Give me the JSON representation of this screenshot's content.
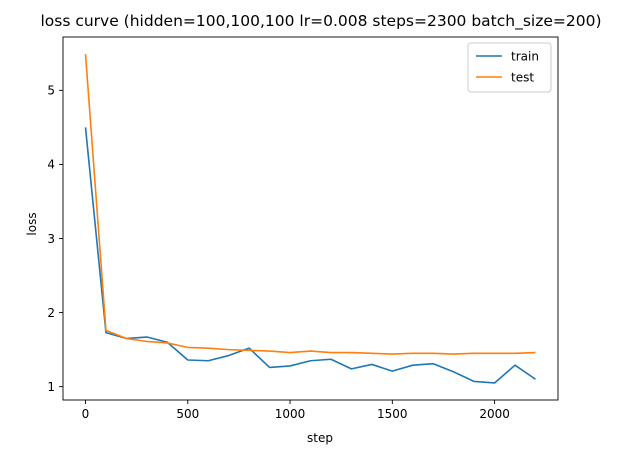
{
  "chart_data": {
    "type": "line",
    "title": "loss curve (hidden=100,100,100 lr=0.008 steps=2300 batch_size=200)",
    "xlabel": "step",
    "ylabel": "loss",
    "xlim": [
      -110,
      2310
    ],
    "ylim": [
      0.82,
      5.72
    ],
    "xticks": [
      0,
      500,
      1000,
      1500,
      2000
    ],
    "yticks": [
      1,
      2,
      3,
      4,
      5
    ],
    "grid": false,
    "legend_position": "top-right",
    "series": [
      {
        "name": "train",
        "color": "#1f77b4",
        "x": [
          0,
          100,
          200,
          300,
          400,
          500,
          600,
          700,
          800,
          900,
          1000,
          1100,
          1200,
          1300,
          1400,
          1500,
          1600,
          1700,
          1800,
          1900,
          2000,
          2100,
          2200
        ],
        "y": [
          4.5,
          1.73,
          1.65,
          1.67,
          1.6,
          1.36,
          1.35,
          1.42,
          1.52,
          1.26,
          1.28,
          1.35,
          1.37,
          1.24,
          1.3,
          1.21,
          1.29,
          1.31,
          1.2,
          1.07,
          1.05,
          1.29,
          1.1
        ]
      },
      {
        "name": "test",
        "color": "#ff7f0e",
        "x": [
          0,
          100,
          200,
          300,
          400,
          500,
          600,
          700,
          800,
          900,
          1000,
          1100,
          1200,
          1300,
          1400,
          1500,
          1600,
          1700,
          1800,
          1900,
          2000,
          2100,
          2200
        ],
        "y": [
          5.49,
          1.76,
          1.65,
          1.61,
          1.59,
          1.53,
          1.52,
          1.5,
          1.49,
          1.48,
          1.46,
          1.48,
          1.46,
          1.46,
          1.45,
          1.44,
          1.45,
          1.45,
          1.44,
          1.45,
          1.45,
          1.45,
          1.46
        ]
      }
    ]
  }
}
